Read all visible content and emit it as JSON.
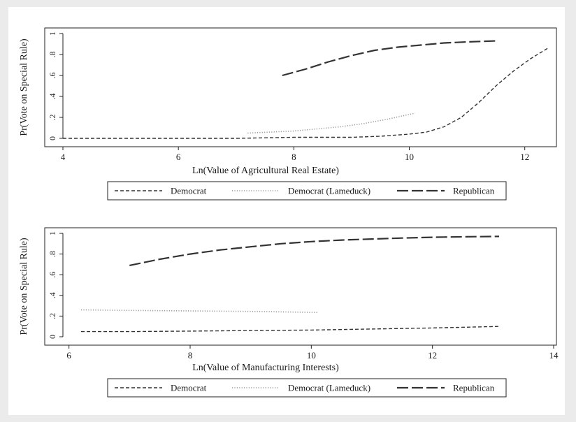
{
  "chart_data": [
    {
      "type": "line",
      "xlabel": "Ln(Value of Agricultural Real Estate)",
      "ylabel": "Pr(Vote on Special Rule)",
      "xlim": [
        4,
        12.5
      ],
      "ylim": [
        0,
        1
      ],
      "xticks": [
        4,
        6,
        8,
        10,
        12
      ],
      "xtick_labels": [
        "4",
        "6",
        "8",
        "10",
        "12"
      ],
      "yticks": [
        0,
        0.2,
        0.4,
        0.6,
        0.8,
        1
      ],
      "ytick_labels": [
        "0",
        ".2",
        ".4",
        ".6",
        ".8",
        "1"
      ],
      "grid": false,
      "legend_position": "bottom",
      "series": [
        {
          "name": "Democrat",
          "style": "dashed",
          "color": "#333333",
          "x": [
            4.0,
            5.0,
            6.0,
            7.0,
            8.0,
            9.0,
            9.5,
            10.0,
            10.3,
            10.6,
            10.9,
            11.2,
            11.5,
            11.8,
            12.1,
            12.4
          ],
          "y": [
            0.0,
            0.0,
            0.0,
            0.0,
            0.01,
            0.01,
            0.02,
            0.04,
            0.06,
            0.11,
            0.2,
            0.34,
            0.5,
            0.64,
            0.76,
            0.86
          ]
        },
        {
          "name": "Democrat (Lameduck)",
          "style": "dotted",
          "color": "#999999",
          "x": [
            7.2,
            7.6,
            8.0,
            8.4,
            8.8,
            9.2,
            9.6,
            10.1
          ],
          "y": [
            0.05,
            0.06,
            0.07,
            0.09,
            0.11,
            0.14,
            0.18,
            0.24
          ]
        },
        {
          "name": "Republican",
          "style": "longdash",
          "color": "#333333",
          "x": [
            7.8,
            8.2,
            8.6,
            9.0,
            9.4,
            9.8,
            10.2,
            10.6,
            11.0,
            11.5
          ],
          "y": [
            0.6,
            0.66,
            0.73,
            0.79,
            0.84,
            0.87,
            0.89,
            0.91,
            0.92,
            0.93
          ]
        }
      ]
    },
    {
      "type": "line",
      "xlabel": "Ln(Value of Manufacturing Interests)",
      "ylabel": "Pr(Vote on Special Rule)",
      "xlim": [
        5.9,
        14
      ],
      "ylim": [
        0,
        1
      ],
      "xticks": [
        6,
        8,
        10,
        12,
        14
      ],
      "xtick_labels": [
        "6",
        "8",
        "10",
        "12",
        "14"
      ],
      "yticks": [
        0,
        0.2,
        0.4,
        0.6,
        0.8,
        1
      ],
      "ytick_labels": [
        "0",
        ".2",
        ".4",
        ".6",
        ".8",
        "1"
      ],
      "grid": false,
      "legend_position": "bottom",
      "series": [
        {
          "name": "Democrat",
          "style": "dashed",
          "color": "#333333",
          "x": [
            6.2,
            7.0,
            8.0,
            9.0,
            10.0,
            11.0,
            12.0,
            13.1
          ],
          "y": [
            0.05,
            0.05,
            0.055,
            0.06,
            0.065,
            0.075,
            0.085,
            0.1
          ]
        },
        {
          "name": "Democrat (Lameduck)",
          "style": "dotted",
          "color": "#999999",
          "x": [
            6.2,
            7.0,
            8.0,
            9.0,
            10.1
          ],
          "y": [
            0.26,
            0.255,
            0.25,
            0.245,
            0.235
          ]
        },
        {
          "name": "Republican",
          "style": "longdash",
          "color": "#333333",
          "x": [
            7.0,
            7.5,
            8.0,
            8.5,
            9.0,
            9.5,
            10.0,
            10.5,
            11.0,
            11.5,
            12.0,
            12.5,
            13.1
          ],
          "y": [
            0.69,
            0.75,
            0.8,
            0.84,
            0.87,
            0.9,
            0.92,
            0.935,
            0.945,
            0.955,
            0.962,
            0.967,
            0.97
          ]
        }
      ]
    }
  ]
}
